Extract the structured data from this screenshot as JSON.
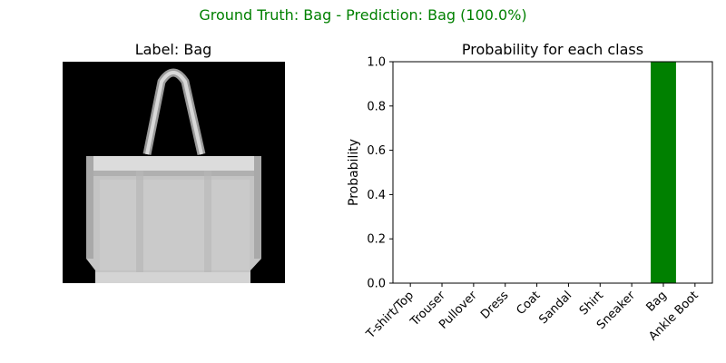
{
  "figure": {
    "suptitle": "Ground Truth: Bag - Prediction: Bag (100.0%)",
    "suptitle_color": "#008000"
  },
  "image_panel": {
    "title": "Label: Bag",
    "icon": "fashion-mnist-bag-image"
  },
  "chart_data": {
    "type": "bar",
    "title": "Probability for each class",
    "xlabel": "",
    "ylabel": "Probability",
    "categories": [
      "T-shirt/Top",
      "Trouser",
      "Pullover",
      "Dress",
      "Coat",
      "Sandal",
      "Shirt",
      "Sneaker",
      "Bag",
      "Ankle Boot"
    ],
    "values": [
      0,
      0,
      0,
      0,
      0,
      0,
      0,
      0,
      1.0,
      0
    ],
    "ylim": [
      0,
      1.0
    ],
    "yticks": [
      "0.0",
      "0.2",
      "0.4",
      "0.6",
      "0.8",
      "1.0"
    ],
    "bar_color": "#008000",
    "grid": false
  }
}
